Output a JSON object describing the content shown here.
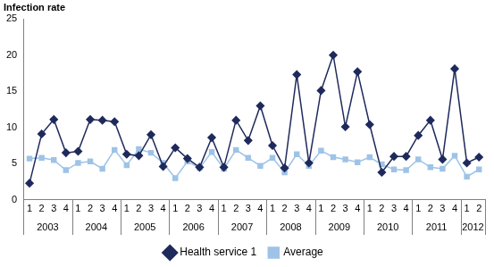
{
  "chart_data": {
    "type": "line",
    "y_label": "Infection rate",
    "categories": [
      "1",
      "2",
      "3",
      "4",
      "1",
      "2",
      "3",
      "4",
      "1",
      "2",
      "3",
      "4",
      "1",
      "2",
      "3",
      "4",
      "1",
      "2",
      "3",
      "4",
      "1",
      "2",
      "3",
      "4",
      "1",
      "2",
      "3",
      "4",
      "1",
      "2",
      "3",
      "4",
      "1",
      "2",
      "3",
      "4",
      "1",
      "2"
    ],
    "x_groups": [
      {
        "label": "2003",
        "size": 4
      },
      {
        "label": "2004",
        "size": 4
      },
      {
        "label": "2005",
        "size": 4
      },
      {
        "label": "2006",
        "size": 4
      },
      {
        "label": "2007",
        "size": 4
      },
      {
        "label": "2008",
        "size": 4
      },
      {
        "label": "2009",
        "size": 4
      },
      {
        "label": "2010",
        "size": 4
      },
      {
        "label": "2011",
        "size": 4
      },
      {
        "label": "2012",
        "size": 2
      }
    ],
    "series": [
      {
        "name": "Health service 1",
        "color": "#1f2a5c",
        "marker": "diamond",
        "values": [
          2.3,
          9.1,
          11.1,
          6.5,
          6.7,
          11.1,
          11.0,
          10.8,
          6.3,
          6.1,
          9.0,
          4.6,
          7.2,
          5.7,
          4.5,
          8.6,
          4.5,
          11.0,
          8.2,
          13.0,
          7.5,
          4.4,
          17.3,
          5.1,
          15.1,
          20.0,
          10.1,
          17.7,
          10.4,
          3.8,
          6.0,
          6.0,
          8.9,
          11.0,
          5.6,
          18.1,
          5.1,
          5.9
        ]
      },
      {
        "name": "Average",
        "color": "#9ec3e6",
        "marker": "square",
        "values": [
          5.7,
          5.8,
          5.5,
          4.1,
          5.1,
          5.3,
          4.3,
          6.9,
          4.8,
          7.0,
          6.5,
          5.1,
          3.0,
          5.3,
          4.4,
          6.6,
          4.3,
          6.9,
          5.8,
          4.7,
          5.8,
          3.8,
          6.3,
          4.7,
          6.8,
          5.9,
          5.6,
          5.2,
          5.9,
          4.9,
          4.2,
          4.1,
          5.6,
          4.5,
          4.3,
          6.1,
          3.2,
          4.2
        ]
      }
    ],
    "ylim": [
      0,
      25
    ],
    "yticks": [
      0,
      5,
      10,
      15,
      20,
      25
    ],
    "grid": false,
    "legend": "bottom"
  }
}
